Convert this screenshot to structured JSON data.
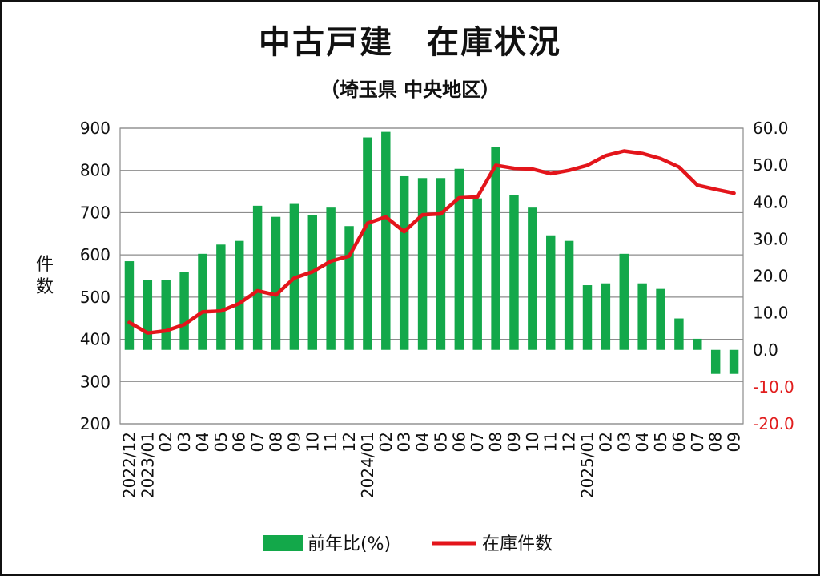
{
  "chart_data": {
    "type": "bar+line",
    "title": "中古戸建　在庫状況",
    "subtitle": "（埼玉県 中央地区）",
    "ylabel_left": "件数",
    "ylim_left": [
      200,
      900
    ],
    "yticks_left": [
      "900",
      "800",
      "700",
      "600",
      "500",
      "400",
      "300",
      "200"
    ],
    "ylim_right": [
      -20,
      60
    ],
    "yticks_right": [
      "60.0",
      "50.0",
      "40.0",
      "30.0",
      "20.0",
      "10.0",
      "0.0",
      "-10.0",
      "-20.0"
    ],
    "grid": true,
    "legend_position": "bottom",
    "categories": [
      "2022/12",
      "2023/01",
      "02",
      "03",
      "04",
      "05",
      "06",
      "07",
      "08",
      "09",
      "10",
      "11",
      "12",
      "2024/01",
      "02",
      "03",
      "04",
      "05",
      "06",
      "07",
      "08",
      "09",
      "10",
      "11",
      "12",
      "2025/01",
      "02",
      "03",
      "04",
      "05",
      "06",
      "07",
      "08",
      "09"
    ],
    "series": [
      {
        "name": "前年比(%)",
        "type": "bar",
        "axis": "right",
        "color": "#13a84a",
        "values": [
          24.0,
          19.0,
          19.0,
          21.0,
          26.0,
          28.5,
          29.5,
          39.0,
          36.0,
          39.5,
          36.5,
          38.5,
          33.5,
          57.5,
          59.0,
          47.0,
          46.5,
          46.5,
          49.0,
          41.0,
          55.0,
          42.0,
          38.5,
          31.0,
          29.5,
          17.5,
          18.0,
          26.0,
          18.0,
          16.5,
          8.5,
          3.0,
          -6.5,
          -6.5
        ]
      },
      {
        "name": "在庫件数",
        "type": "line",
        "axis": "left",
        "color": "#e3151b",
        "values": [
          440,
          415,
          420,
          435,
          465,
          467,
          485,
          515,
          505,
          545,
          560,
          585,
          597,
          675,
          690,
          655,
          695,
          697,
          735,
          737,
          812,
          805,
          803,
          792,
          800,
          812,
          835,
          846,
          840,
          828,
          808,
          765,
          755,
          746
        ]
      }
    ]
  }
}
